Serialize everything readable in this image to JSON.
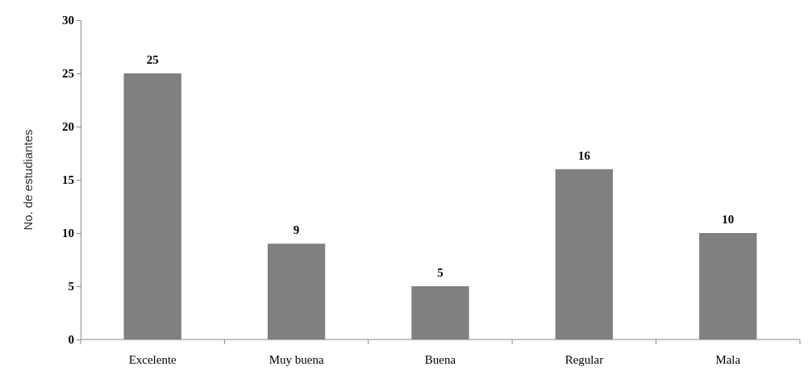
{
  "chart_data": {
    "type": "bar",
    "ylabel": "No. de estudiantes",
    "categories": [
      "Excelente",
      "Muy buena",
      "Buena",
      "Regular",
      "Mala"
    ],
    "values": [
      25,
      9,
      5,
      16,
      10
    ],
    "color": "#808080",
    "ylim": [
      0,
      30
    ],
    "yticks": [
      0,
      5,
      10,
      15,
      20,
      25,
      30
    ],
    "data_labels": true,
    "grid": false
  }
}
